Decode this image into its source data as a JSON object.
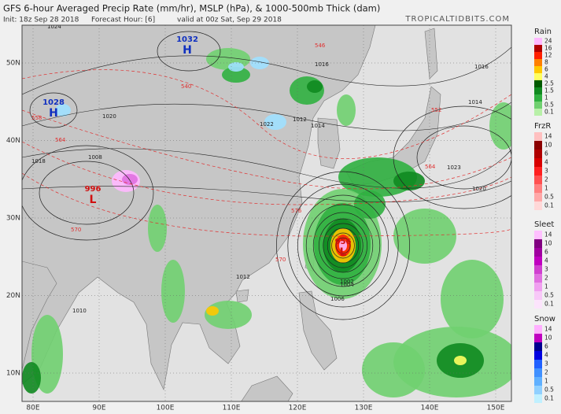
{
  "header": {
    "title": "GFS 6-hour Averaged Precip Rate (mm/hr), MSLP (hPa), & 1000-500mb Thick (dam)",
    "init": "Init: 18z Sep 28 2018",
    "forecast": "Forecast Hour: [6]",
    "valid": "valid at 00z Sat, Sep 29 2018",
    "brand": "TROPICALTIDBITS.COM"
  },
  "map": {
    "lat_labels": [
      "50N",
      "40N",
      "30N",
      "20N",
      "10N"
    ],
    "lon_labels": [
      "80E",
      "90E",
      "100E",
      "110E",
      "120E",
      "130E",
      "140E",
      "150E"
    ],
    "centers": [
      {
        "letter": "H",
        "pressure": "1032"
      },
      {
        "letter": "H",
        "pressure": "1028"
      },
      {
        "letter": "L",
        "pressure": "996"
      },
      {
        "letter": "L",
        "pressure": "956"
      }
    ],
    "isobar_labels": [
      "1024",
      "1020",
      "1016",
      "1014",
      "1012",
      "1008",
      "1004",
      "1002",
      "1006",
      "1018",
      "1022",
      "1023",
      "1016",
      "1014",
      "1020",
      "1010",
      "1012"
    ],
    "thickness_labels": [
      "546",
      "552",
      "558",
      "564",
      "570",
      "540",
      "564",
      "570",
      "576"
    ]
  },
  "legends": [
    {
      "title": "Rain",
      "items": [
        {
          "label": "24",
          "color": "#ffb8ff"
        },
        {
          "label": "16",
          "color": "#b00000"
        },
        {
          "label": "12",
          "color": "#ff2000"
        },
        {
          "label": "8",
          "color": "#ff8000"
        },
        {
          "label": "6",
          "color": "#ffc800"
        },
        {
          "label": "4",
          "color": "#ffff60"
        },
        {
          "label": "2.5",
          "color": "#005a00"
        },
        {
          "label": "1.5",
          "color": "#108a20"
        },
        {
          "label": "1",
          "color": "#30b040"
        },
        {
          "label": "0.5",
          "color": "#70d070"
        },
        {
          "label": "0.1",
          "color": "#b8f0a8"
        }
      ]
    },
    {
      "title": "FrzR",
      "items": [
        {
          "label": "14",
          "color": "#ffc0c0"
        },
        {
          "label": "10",
          "color": "#8b0000"
        },
        {
          "label": "6",
          "color": "#b00000"
        },
        {
          "label": "4",
          "color": "#d80000"
        },
        {
          "label": "3",
          "color": "#ff2020"
        },
        {
          "label": "2",
          "color": "#ff5050"
        },
        {
          "label": "1",
          "color": "#ff8080"
        },
        {
          "label": "0.5",
          "color": "#ffa8a8"
        },
        {
          "label": "0.1",
          "color": "#ffd8d8"
        }
      ]
    },
    {
      "title": "Sleet",
      "items": [
        {
          "label": "14",
          "color": "#ffc0ff"
        },
        {
          "label": "10",
          "color": "#800080"
        },
        {
          "label": "6",
          "color": "#a000a0"
        },
        {
          "label": "4",
          "color": "#c000c0"
        },
        {
          "label": "3",
          "color": "#d040d0"
        },
        {
          "label": "2",
          "color": "#e070e0"
        },
        {
          "label": "1",
          "color": "#f0a0f0"
        },
        {
          "label": "0.5",
          "color": "#f8c8f8"
        },
        {
          "label": "0.1",
          "color": "#fce4fc"
        }
      ]
    },
    {
      "title": "Snow",
      "items": [
        {
          "label": "14",
          "color": "#ffb0ff"
        },
        {
          "label": "10",
          "color": "#c000c0"
        },
        {
          "label": "6",
          "color": "#000090"
        },
        {
          "label": "4",
          "color": "#0000e0"
        },
        {
          "label": "3",
          "color": "#2060ff"
        },
        {
          "label": "2",
          "color": "#4090ff"
        },
        {
          "label": "1",
          "color": "#60b0ff"
        },
        {
          "label": "0.5",
          "color": "#90d0ff"
        },
        {
          "label": "0.1",
          "color": "#c0f0ff"
        }
      ]
    }
  ]
}
